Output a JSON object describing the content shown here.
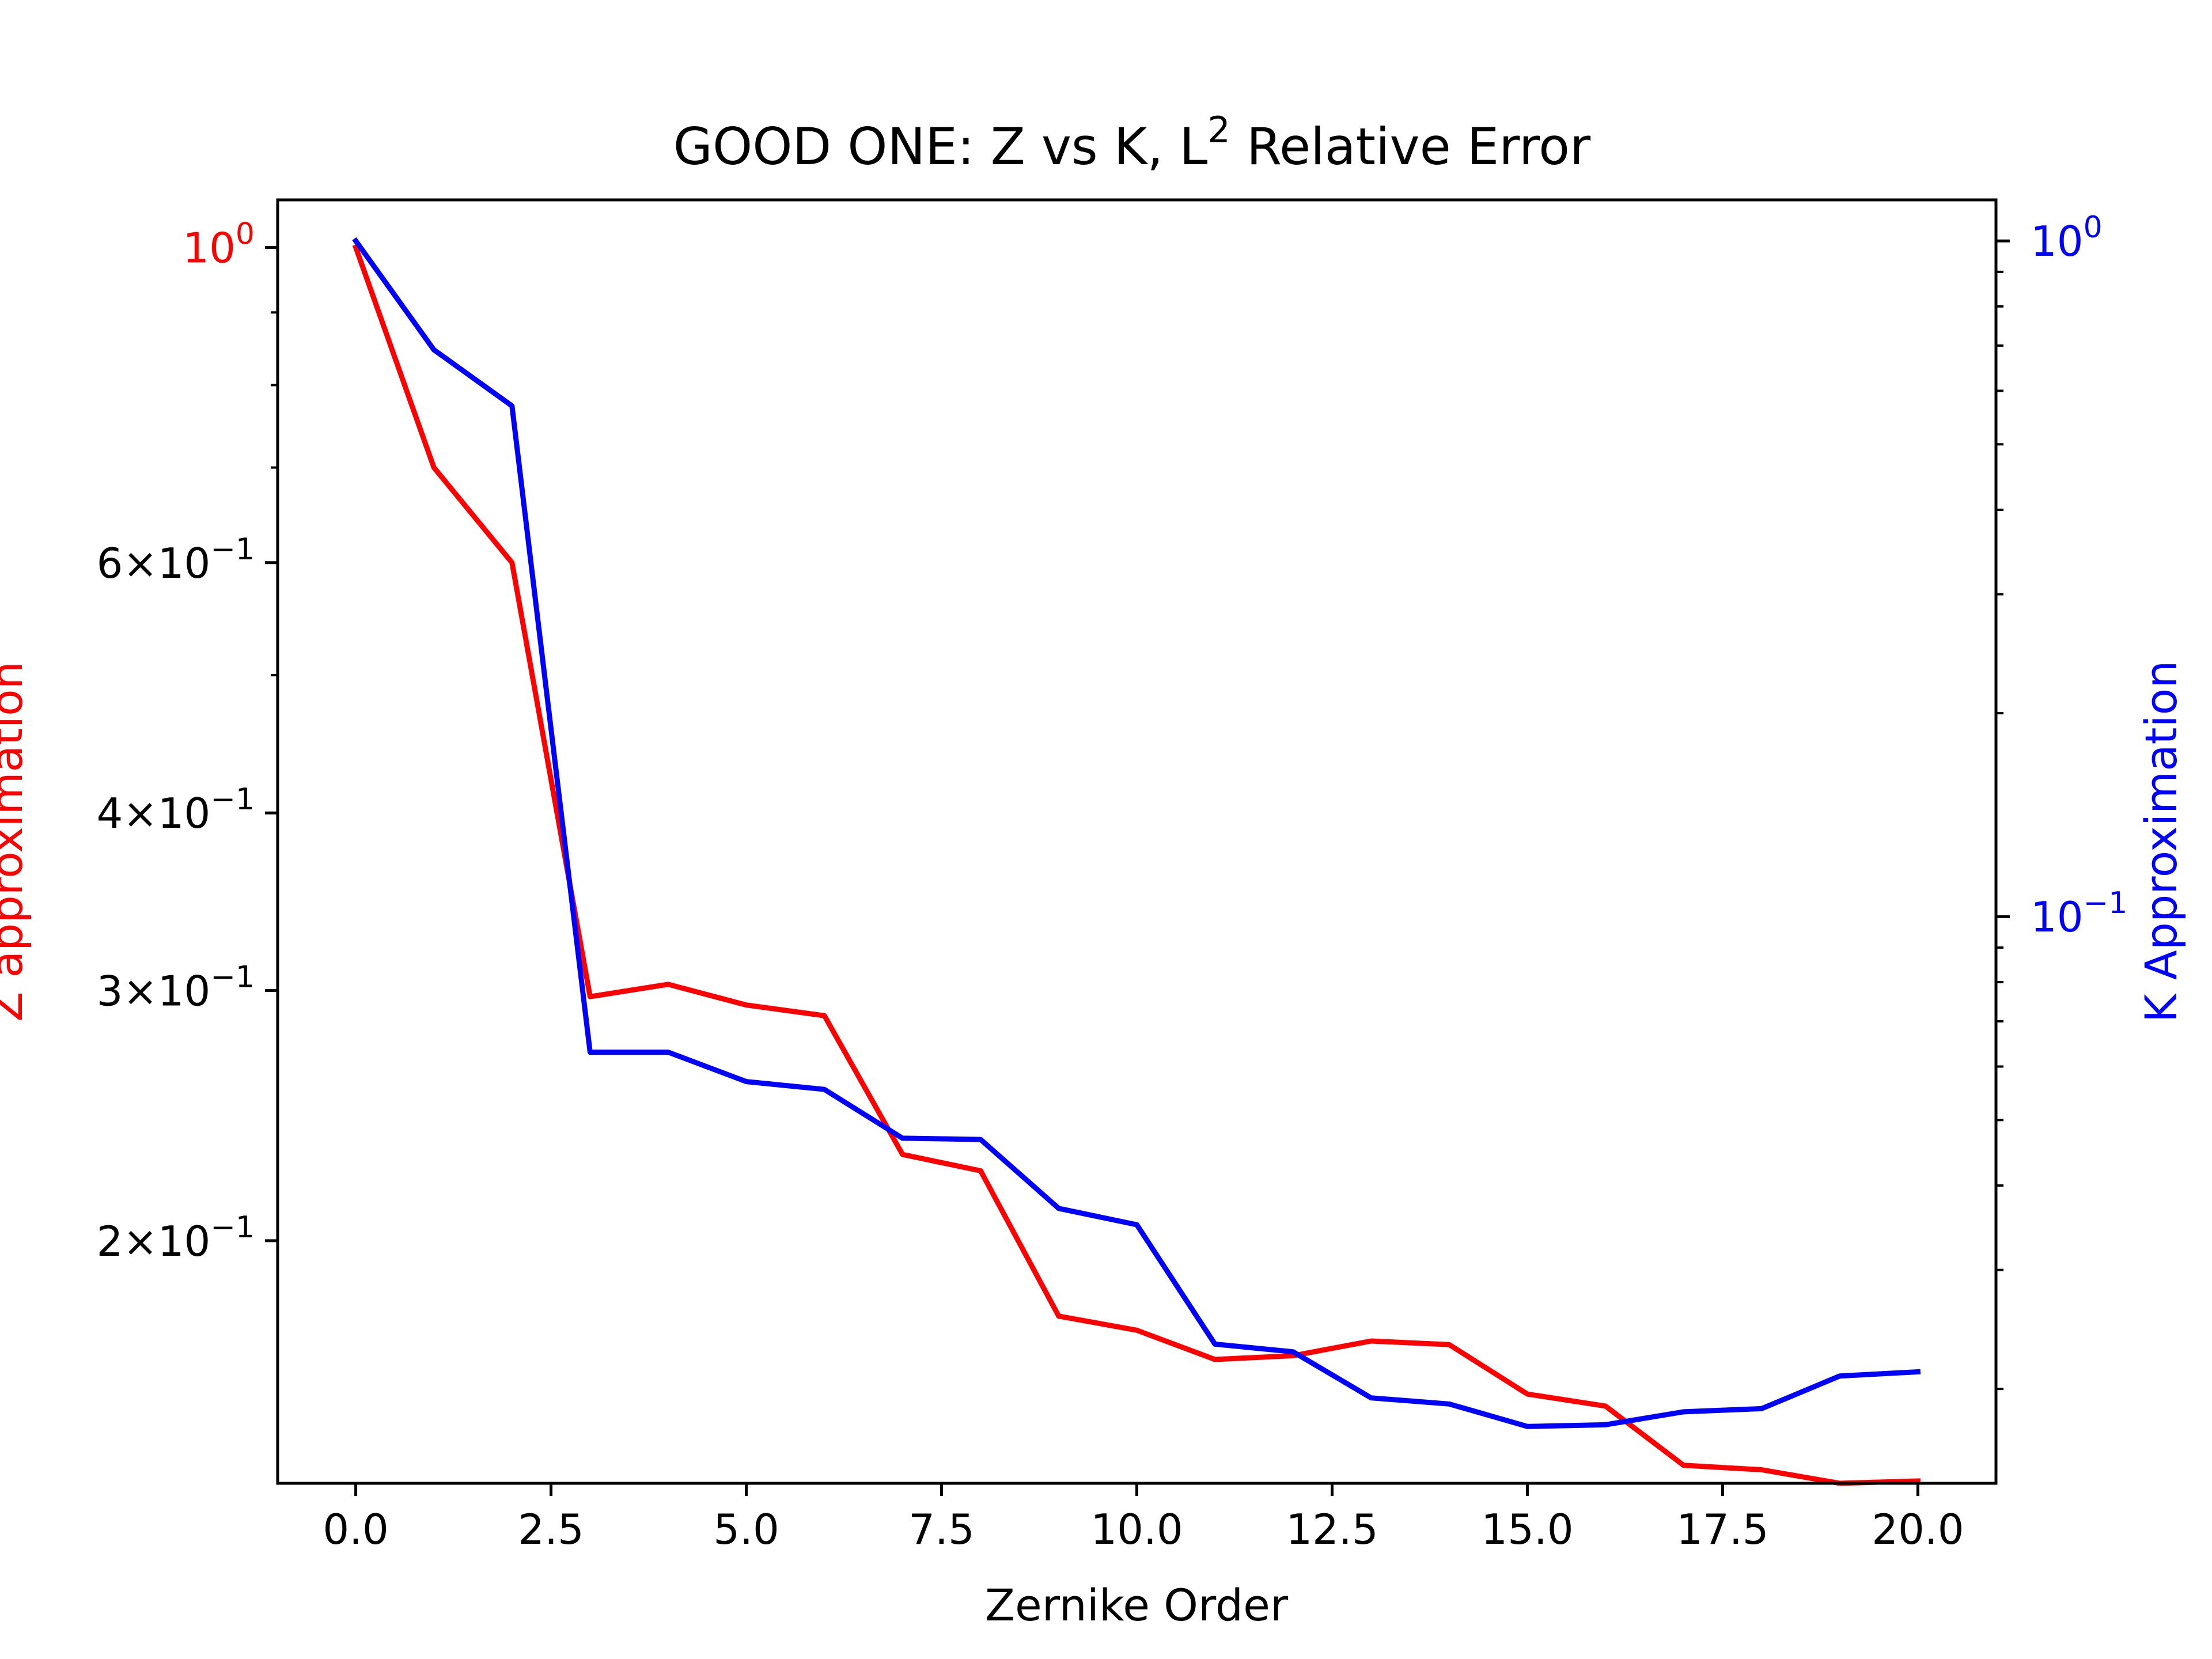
{
  "chart_data": {
    "type": "line",
    "title": "GOOD ONE: Z vs K, L",
    "title_superscript": "2",
    "title_suffix": " Relative Error",
    "xlabel": "Zernike Order",
    "ylabel_left": "Z approximation",
    "ylabel_right": "K Approximation",
    "xlim": [
      -1,
      21
    ],
    "x_ticks": [
      0,
      2.5,
      5,
      7.5,
      10,
      12.5,
      15,
      17.5,
      20
    ],
    "x_tick_labels": [
      "0.0",
      "2.5",
      "5.0",
      "7.5",
      "10.0",
      "12.5",
      "15.0",
      "17.5",
      "20.0"
    ],
    "yscale_left": "log",
    "ylim_left": [
      0.135,
      1.08
    ],
    "y_left_ticks": [
      {
        "value": 1.0,
        "mantissa": "",
        "exp": "0"
      },
      {
        "value": 0.6,
        "mantissa": "6",
        "exp": "−1"
      },
      {
        "value": 0.4,
        "mantissa": "4",
        "exp": "−1"
      },
      {
        "value": 0.3,
        "mantissa": "3",
        "exp": "−1"
      },
      {
        "value": 0.2,
        "mantissa": "2",
        "exp": "−1"
      }
    ],
    "yscale_right": "log",
    "ylim_right": [
      0.0145,
      1.15
    ],
    "y_right_ticks": [
      {
        "value": 1.0,
        "exp": "0"
      },
      {
        "value": 0.1,
        "exp": "−1"
      }
    ],
    "x": [
      0,
      1,
      2,
      3,
      4,
      5,
      6,
      7,
      8,
      9,
      10,
      11,
      12,
      13,
      14,
      15,
      16,
      17,
      18,
      19,
      20
    ],
    "series": [
      {
        "axis": "left",
        "color": "#ff0000",
        "values": [
          1.0,
          0.7,
          0.6,
          0.297,
          0.303,
          0.293,
          0.288,
          0.23,
          0.224,
          0.177,
          0.173,
          0.165,
          0.166,
          0.17,
          0.169,
          0.156,
          0.153,
          0.139,
          0.138,
          0.135,
          0.1355
        ]
      },
      {
        "axis": "right",
        "color": "#0000ff",
        "values": [
          1.0,
          0.69,
          0.57,
          0.063,
          0.063,
          0.057,
          0.0555,
          0.047,
          0.0468,
          0.037,
          0.035,
          0.0233,
          0.0227,
          0.0194,
          0.019,
          0.0176,
          0.0177,
          0.0185,
          0.0187,
          0.0209,
          0.0212
        ]
      }
    ],
    "grid": false,
    "legend": "none"
  },
  "colors": {
    "left_axis": "#ff0000",
    "right_axis": "#0000ff",
    "frame": "#000000"
  }
}
